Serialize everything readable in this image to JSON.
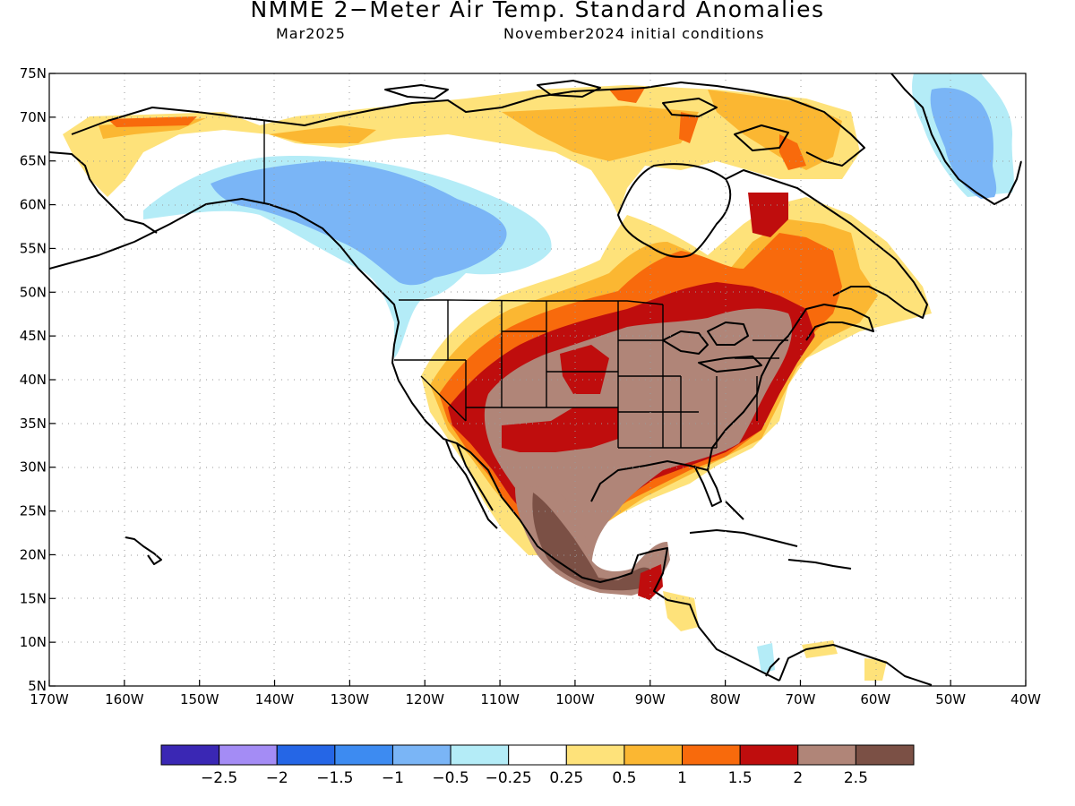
{
  "title": "NMME 2−Meter Air Temp. Standard Anomalies",
  "subtitle_left": "Mar2025",
  "subtitle_right": "November2024 initial conditions",
  "lat_labels": [
    "75N",
    "70N",
    "65N",
    "60N",
    "55N",
    "50N",
    "45N",
    "40N",
    "35N",
    "30N",
    "25N",
    "20N",
    "15N",
    "10N",
    "5N"
  ],
  "lon_labels": [
    "170W",
    "160W",
    "150W",
    "140W",
    "130W",
    "120W",
    "110W",
    "100W",
    "90W",
    "80W",
    "70W",
    "60W",
    "50W",
    "40W"
  ],
  "colorbar": {
    "colors": [
      "#3a27b4",
      "#a48cf5",
      "#2566e6",
      "#3d8bf1",
      "#7ab5f6",
      "#b4ecf7",
      "#ffffff",
      "#fee27a",
      "#fbb732",
      "#f86a0c",
      "#bf0d0d",
      "#b08578",
      "#7b5045"
    ],
    "labels": [
      "−2.5",
      "−2",
      "−1.5",
      "−1",
      "−0.5",
      "−0.25",
      "0.25",
      "0.5",
      "1",
      "1.5",
      "2",
      "2.5"
    ]
  },
  "colors": {
    "coast": "#000000",
    "grid": "#9a9a9a"
  }
}
